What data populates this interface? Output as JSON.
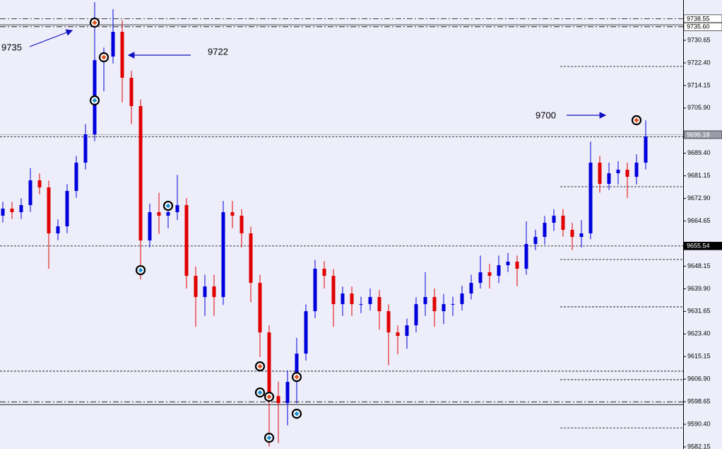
{
  "chart_data": {
    "type": "candlestick",
    "ylim": [
      9581.38,
      9745.37
    ],
    "yticks": [
      9738.55,
      {
        "value": 9735.6,
        "label": "9735.60"
      },
      9730.65,
      {
        "value": 9722.4,
        "label": "9722.40"
      },
      9714.15,
      {
        "value": 9705.9,
        "label": "9705.90"
      },
      {
        "value": 9689.4,
        "label": "9689.40"
      },
      9681.15,
      {
        "value": 9672.9,
        "label": "9672.90"
      },
      9664.65,
      9648.15,
      {
        "value": 9639.9,
        "label": "9639.90"
      },
      9631.65,
      {
        "value": 9623.4,
        "label": "9623.40"
      },
      9615.15,
      {
        "value": 9606.9,
        "label": "9606.90"
      },
      9598.65,
      {
        "value": 9590.4,
        "label": "9590.40"
      },
      9582.15
    ],
    "up_color": "#0000dc",
    "down_color": "#e00000",
    "open": [
      9666.59,
      9669.17,
      9667.88,
      9670.46,
      9679.5,
      9676.92,
      9660.13,
      9662.71,
      9675.63,
      9685.96,
      9696.29,
      9723.41,
      9724.71,
      9733.75,
      9716.96,
      9706.62,
      9657.55,
      9667.88,
      9666.59,
      9667.88,
      9670.46,
      9644.63,
      9636.88,
      9640.76,
      9636.88,
      9667.88,
      9666.59,
      9660.13,
      9642.05,
      9623.97,
      9600.72,
      9598.14,
      9605.89,
      9616.22,
      9631.72,
      9647.22,
      9644.63,
      9634.3,
      9638.18,
      9634.3,
      9634.3,
      9636.88,
      9631.72,
      9623.97,
      9622.68,
      9626.55,
      9634.3,
      9636.88,
      9631.72,
      9634.3,
      9634.3,
      9638.18,
      9642.05,
      9645.92,
      9644.63,
      9648.51,
      9649.8,
      9647.22,
      9656.26,
      9658.84,
      9664.01,
      9666.59,
      9661.42,
      9658.84,
      9660.13,
      9685.96,
      9678.21,
      9682.09,
      9683.38,
      9680.79,
      9685.96
    ],
    "high": [
      9671.67,
      9671.67,
      9672.96,
      9684.0,
      9682.0,
      9679.42,
      9665.21,
      9678.13,
      9688.46,
      9700.0,
      9744.6,
      9728.0,
      9742.0,
      9738.0,
      9719.5,
      9709.1,
      9671.0,
      9675.0,
      9671.0,
      9681.5,
      9673.0,
      9648.0,
      9645.0,
      9645.0,
      9672.0,
      9672.0,
      9669.0,
      9662.6,
      9645.0,
      9626.5,
      9606.0,
      9610.0,
      9622.0,
      9634.2,
      9650.5,
      9650.0,
      9647.1,
      9640.7,
      9640.7,
      9637.0,
      9640.0,
      9639.4,
      9634.2,
      9626.5,
      9629.0,
      9636.8,
      9646.0,
      9640.0,
      9638.0,
      9637.0,
      9641.0,
      9645.0,
      9652.0,
      9649.0,
      9652.0,
      9653.0,
      9652.0,
      9664.5,
      9661.5,
      9666.5,
      9669.0,
      9669.0,
      9664.0,
      9665.0,
      9693.7,
      9688.5,
      9686.0,
      9686.5,
      9686.0,
      9689.0,
      9701.4
    ],
    "low": [
      9664.09,
      9665.38,
      9665.38,
      9667.96,
      9674.42,
      9647.2,
      9657.63,
      9660.21,
      9673.13,
      9683.46,
      9693.8,
      9712.0,
      9722.2,
      9708.0,
      9700.0,
      9643.3,
      9655.0,
      9660.0,
      9662.0,
      9665.0,
      9640.0,
      9626.0,
      9630.0,
      9630.0,
      9634.0,
      9662.0,
      9655.0,
      9635.0,
      9615.0,
      9582.2,
      9583.5,
      9590.0,
      9598.0,
      9613.7,
      9629.2,
      9640.0,
      9626.0,
      9630.0,
      9630.0,
      9631.0,
      9632.0,
      9625.0,
      9612.0,
      9616.0,
      9618.0,
      9624.0,
      9630.0,
      9626.0,
      9627.0,
      9630.0,
      9632.0,
      9636.0,
      9640.0,
      9640.0,
      9642.0,
      9646.0,
      9640.8,
      9645.0,
      9654.0,
      9656.0,
      9661.0,
      9659.0,
      9654.0,
      9655.0,
      9658.0,
      9675.0,
      9676.0,
      9678.0,
      9673.0,
      9678.0,
      9683.5
    ],
    "close": [
      9669.17,
      9667.88,
      9670.46,
      9679.5,
      9676.92,
      9660.13,
      9662.71,
      9675.63,
      9685.96,
      9696.29,
      9723.41,
      9724.71,
      9733.75,
      9716.96,
      9706.62,
      9657.55,
      9667.88,
      9666.59,
      9667.88,
      9670.46,
      9644.63,
      9636.88,
      9640.76,
      9636.88,
      9667.88,
      9666.59,
      9660.13,
      9642.05,
      9623.97,
      9600.72,
      9598.14,
      9605.89,
      9616.22,
      9631.72,
      9647.22,
      9644.63,
      9634.3,
      9638.18,
      9634.3,
      9634.3,
      9636.88,
      9631.72,
      9623.97,
      9622.68,
      9626.55,
      9634.3,
      9636.88,
      9631.72,
      9634.3,
      9634.3,
      9638.18,
      9642.05,
      9645.92,
      9644.63,
      9648.51,
      9649.8,
      9647.22,
      9656.26,
      9658.84,
      9664.01,
      9666.59,
      9661.42,
      9658.84,
      9660.13,
      9685.96,
      9678.21,
      9682.09,
      9683.38,
      9680.79,
      9685.96,
      9695.52
    ],
    "levels": [
      {
        "value": 9738.55,
        "label": "9738.55",
        "style": "dashdot",
        "box": "light"
      },
      {
        "value": 9735.6,
        "label": "9735.60",
        "style": "dashdot",
        "box": "light"
      },
      {
        "value": 9696.18,
        "label": "9696.18",
        "style": "solid",
        "box": "grey"
      },
      {
        "value": 9655.54,
        "label": "9655.54",
        "style": "dashed",
        "box": "dark"
      }
    ],
    "lines": [
      {
        "value": 9736.3,
        "style": "solid"
      },
      {
        "value": 9695.4,
        "style": "dashed"
      },
      {
        "value": 9609.8,
        "style": "dashed"
      },
      {
        "value": 9598.6,
        "style": "dashdot"
      },
      {
        "value": 9597.6,
        "style": "solid"
      }
    ],
    "short_lines": [
      9721.1,
      9677.2,
      9650.6,
      9633.3,
      9606.7,
      9589.1
    ],
    "signals": [
      {
        "index": 10,
        "price": 9737.1,
        "kind": "sell"
      },
      {
        "index": 11,
        "price": 9724.45,
        "kind": "sell"
      },
      {
        "index": 28,
        "price": 9611.57,
        "kind": "sell"
      },
      {
        "index": 29,
        "price": 9600.46,
        "kind": "sell"
      },
      {
        "index": 32,
        "price": 9607.69,
        "kind": "sell"
      },
      {
        "index": 69,
        "price": 9701.46,
        "kind": "sell"
      },
      {
        "index": 10,
        "price": 9708.69,
        "kind": "buy"
      },
      {
        "index": 15,
        "price": 9646.7,
        "kind": "buy"
      },
      {
        "index": 18,
        "price": 9670.2,
        "kind": "buy"
      },
      {
        "index": 28,
        "price": 9602.01,
        "kind": "buy"
      },
      {
        "index": 29,
        "price": 9585.48,
        "kind": "buy"
      },
      {
        "index": 32,
        "price": 9594.26,
        "kind": "buy"
      }
    ],
    "annotations": [
      "9735",
      "9722",
      "9700"
    ]
  }
}
